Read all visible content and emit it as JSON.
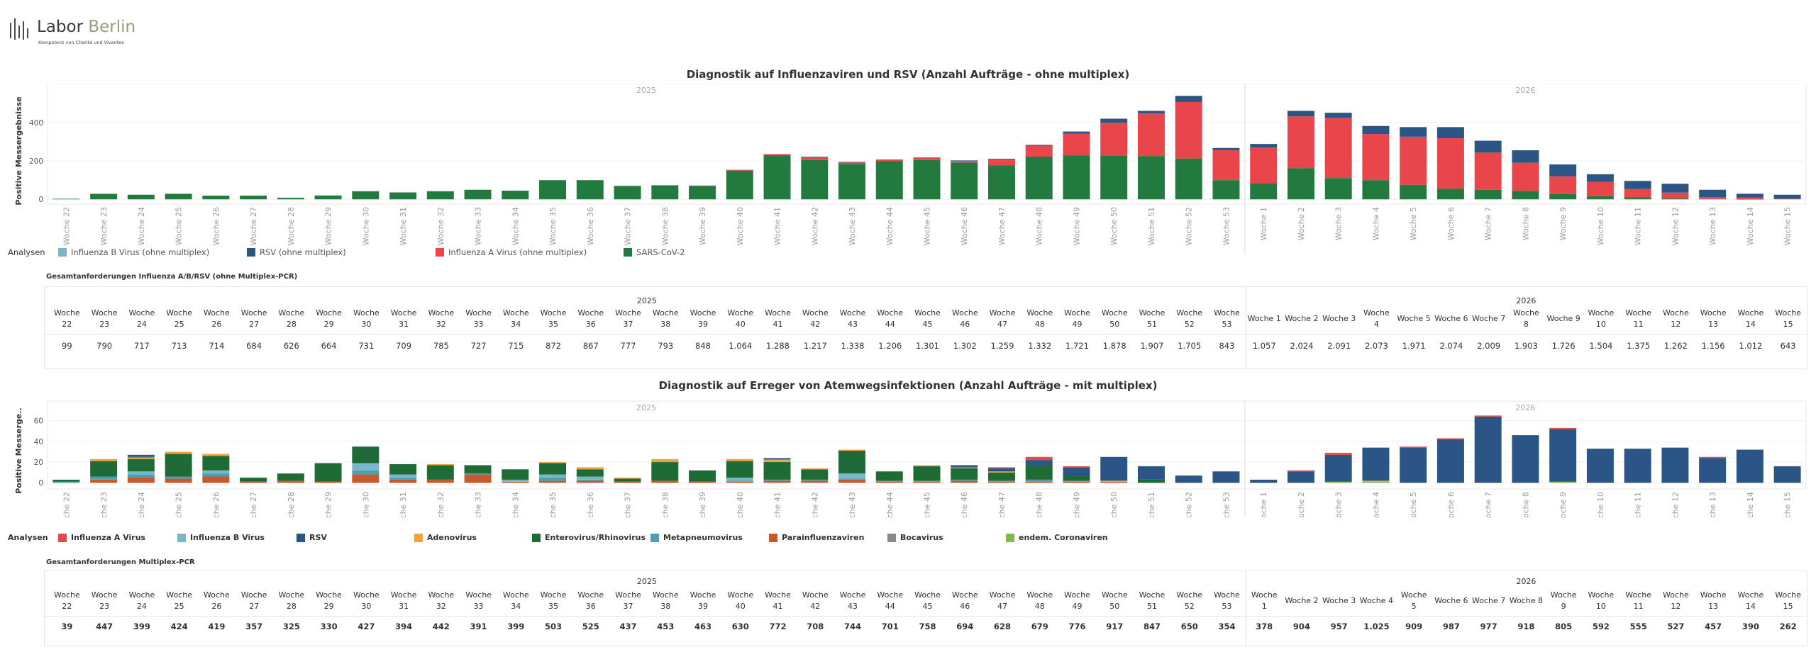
{
  "logo": {
    "name_part1": "Labor ",
    "name_part2": "Berlin",
    "tagline": "Kompetenz von Charité und Vivantes"
  },
  "weeks": [
    "22",
    "23",
    "24",
    "25",
    "26",
    "27",
    "28",
    "29",
    "30",
    "31",
    "32",
    "33",
    "34",
    "35",
    "36",
    "37",
    "38",
    "39",
    "40",
    "41",
    "42",
    "43",
    "44",
    "45",
    "46",
    "47",
    "48",
    "49",
    "50",
    "51",
    "52",
    "53",
    "1",
    "2",
    "3",
    "4",
    "5",
    "6",
    "7",
    "8",
    "9",
    "10",
    "11",
    "12",
    "13",
    "14",
    "15"
  ],
  "week_prefix": "Woche",
  "years": [
    "2025",
    "2026"
  ],
  "legend_title": "Analysen",
  "colors": {
    "influenza_a": "#e8464a",
    "influenza_b": "#79b6c8",
    "rsv": "#2b5584",
    "sars_cov2": "#237a3f",
    "adenovirus": "#f0a240",
    "entero_rhino": "#1f6b35",
    "metapneumo": "#4a9fb5",
    "parainfluenza": "#c9582b",
    "bocavirus": "#888888",
    "endem_corona": "#7dba4f"
  },
  "chart1": {
    "title": "Diagnostik auf Influenzaviren und RSV (Anzahl Aufträge - ohne multiplex)",
    "chart_data": {
      "type": "bar",
      "stacked": true,
      "ylabel": "Positive Messergebnisse",
      "ylim": [
        -25,
        530
      ],
      "yticks": [
        0,
        200,
        400
      ],
      "categories": [
        "Woche 22",
        "Woche 23",
        "Woche 24",
        "Woche 25",
        "Woche 26",
        "Woche 27",
        "Woche 28",
        "Woche 29",
        "Woche 30",
        "Woche 31",
        "Woche 32",
        "Woche 33",
        "Woche 34",
        "Woche 35",
        "Woche 36",
        "Woche 37",
        "Woche 38",
        "Woche 39",
        "Woche 40",
        "Woche 41",
        "Woche 42",
        "Woche 43",
        "Woche 44",
        "Woche 45",
        "Woche 46",
        "Woche 47",
        "Woche 48",
        "Woche 49",
        "Woche 50",
        "Woche 51",
        "Woche 52",
        "Woche 53",
        "Woche 1",
        "Woche 2",
        "Woche 3",
        "Woche 4",
        "Woche 5",
        "Woche 6",
        "Woche 7",
        "Woche 8",
        "Woche 9",
        "Woche 10",
        "Woche 11",
        "Woche 12",
        "Woche 13",
        "Woche 14",
        "Woche 15"
      ],
      "series": [
        {
          "name": "SARS-CoV-2",
          "color": "#237a3f",
          "values": [
            3,
            28,
            24,
            29,
            19,
            19,
            8,
            20,
            42,
            36,
            42,
            50,
            45,
            100,
            100,
            70,
            72,
            70,
            150,
            230,
            205,
            185,
            200,
            205,
            192,
            178,
            223,
            230,
            228,
            226,
            213,
            100,
            85,
            163,
            111,
            100,
            76,
            56,
            50,
            44,
            28,
            16,
            10,
            5,
            2,
            1,
            0
          ]
        },
        {
          "name": "Influenza A Virus (ohne multiplex)",
          "color": "#e8464a",
          "values": [
            0,
            1,
            0,
            0,
            0,
            0,
            0,
            0,
            0,
            0,
            0,
            0,
            0,
            0,
            0,
            0,
            2,
            2,
            4,
            6,
            14,
            7,
            8,
            14,
            8,
            33,
            56,
            113,
            172,
            222,
            295,
            158,
            185,
            270,
            314,
            241,
            251,
            263,
            194,
            147,
            92,
            75,
            44,
            30,
            10,
            8,
            3
          ]
        },
        {
          "name": "RSV (ohne multiplex)",
          "color": "#2b5584",
          "values": [
            0,
            0,
            0,
            0,
            0,
            0,
            0,
            0,
            0,
            0,
            0,
            0,
            0,
            0,
            0,
            0,
            0,
            0,
            0,
            0,
            3,
            3,
            0,
            0,
            3,
            1,
            5,
            11,
            21,
            14,
            32,
            10,
            19,
            29,
            27,
            42,
            50,
            58,
            62,
            65,
            62,
            40,
            42,
            46,
            38,
            20,
            21
          ]
        },
        {
          "name": "Influenza B Virus (ohne multiplex)",
          "color": "#79b6c8",
          "values": [
            0,
            0,
            0,
            0,
            0,
            0,
            0,
            0,
            0,
            0,
            0,
            0,
            0,
            0,
            0,
            0,
            0,
            0,
            0,
            0,
            0,
            0,
            0,
            0,
            0,
            0,
            0,
            0,
            0,
            0,
            0,
            0,
            0,
            0,
            0,
            0,
            0,
            0,
            0,
            0,
            0,
            0,
            0,
            0,
            0,
            0,
            0
          ]
        }
      ],
      "legend": [
        "Influenza B Virus (ohne multiplex)",
        "RSV (ohne multiplex)",
        "Influenza A Virus (ohne multiplex)",
        "SARS-CoV-2"
      ]
    }
  },
  "table1": {
    "title": "Gesamtanforderungen Influenza A/B/RSV (ohne Multiplex-PCR)",
    "values": [
      "99",
      "790",
      "717",
      "713",
      "714",
      "684",
      "626",
      "664",
      "731",
      "709",
      "785",
      "727",
      "715",
      "872",
      "867",
      "777",
      "793",
      "848",
      "1.064",
      "1.288",
      "1.217",
      "1.338",
      "1.206",
      "1.301",
      "1.302",
      "1.259",
      "1.332",
      "1.721",
      "1.878",
      "1.907",
      "1.705",
      "843",
      "1.057",
      "2.024",
      "2.091",
      "2.073",
      "1.971",
      "2.074",
      "2.009",
      "1.903",
      "1.726",
      "1.504",
      "1.375",
      "1.262",
      "1.156",
      "1.012",
      "643"
    ]
  },
  "chart2": {
    "title": "Diagnostik auf Erreger von Atemwegsinfektionen (Anzahl Aufträge - mit multiplex)",
    "chart_data": {
      "type": "bar",
      "stacked": true,
      "ylabel": "Positive Messerge..",
      "ylim": [
        -6,
        68
      ],
      "yticks": [
        0,
        20,
        40,
        60
      ],
      "categories": [
        "Woche 22",
        "Woche 23",
        "Woche 24",
        "Woche 25",
        "Woche 26",
        "Woche 27",
        "Woche 28",
        "Woche 29",
        "Woche 30",
        "Woche 31",
        "Woche 32",
        "Woche 33",
        "Woche 34",
        "Woche 35",
        "Woche 36",
        "Woche 37",
        "Woche 38",
        "Woche 39",
        "Woche 40",
        "Woche 41",
        "Woche 42",
        "Woche 43",
        "Woche 44",
        "Woche 45",
        "Woche 46",
        "Woche 47",
        "Woche 48",
        "Woche 49",
        "Woche 50",
        "Woche 51",
        "Woche 52",
        "Woche 53",
        "Woche 1",
        "Woche 2",
        "Woche 3",
        "Woche 4",
        "Woche 5",
        "Woche 6",
        "Woche 7",
        "Woche 8",
        "Woche 9",
        "Woche 10",
        "Woche 11",
        "Woche 12",
        "Woche 13",
        "Woche 14",
        "Woche 15"
      ],
      "series": [
        {
          "name": "Parainfluenzaviren",
          "color": "#c9582b",
          "values": [
            0,
            3,
            5,
            4,
            6,
            1,
            2,
            1,
            8,
            3,
            3,
            8,
            1,
            2,
            2,
            1,
            2,
            1,
            1,
            2,
            2,
            3,
            1,
            1,
            2,
            1,
            1,
            1,
            1,
            0,
            0,
            0,
            0,
            0,
            0,
            0,
            0,
            0,
            0,
            0,
            0,
            0,
            0,
            0,
            0,
            0,
            0
          ]
        },
        {
          "name": "Metapneumovirus",
          "color": "#4a9fb5",
          "values": [
            1,
            3,
            3,
            2,
            3,
            0,
            0,
            0,
            4,
            2,
            0,
            1,
            0,
            3,
            1,
            0,
            0,
            0,
            1,
            1,
            1,
            1,
            1,
            1,
            1,
            1,
            2,
            1,
            0,
            0,
            0,
            0,
            0,
            0,
            0,
            0,
            0,
            0,
            0,
            0,
            0,
            0,
            0,
            0,
            0,
            0,
            0
          ]
        },
        {
          "name": "Influenza B Virus",
          "color": "#79b6c8",
          "values": [
            0,
            0,
            3,
            0,
            3,
            0,
            0,
            0,
            7,
            3,
            0,
            0,
            2,
            3,
            3,
            0,
            0,
            0,
            3,
            0,
            0,
            5,
            0,
            0,
            0,
            0,
            0,
            0,
            0,
            0,
            0,
            0,
            0,
            0,
            0,
            0,
            0,
            0,
            0,
            0,
            0,
            0,
            0,
            0,
            0,
            0,
            0
          ]
        },
        {
          "name": "Enterovirus/Rhinovirus",
          "color": "#1f6b35",
          "values": [
            2,
            15,
            12,
            22,
            14,
            4,
            7,
            18,
            16,
            10,
            14,
            8,
            10,
            11,
            7,
            3,
            18,
            11,
            16,
            17,
            10,
            22,
            9,
            14,
            11,
            8,
            14,
            5,
            0,
            3,
            0,
            0,
            0,
            0,
            0,
            0,
            0,
            0,
            0,
            0,
            0,
            0,
            0,
            0,
            0,
            0,
            0
          ]
        },
        {
          "name": "endem. Coronaviren",
          "color": "#7dba4f",
          "values": [
            0,
            0,
            0,
            0,
            0,
            0,
            0,
            0,
            0,
            0,
            0,
            0,
            0,
            0,
            0,
            0,
            0,
            0,
            0,
            0,
            0,
            0,
            0,
            0,
            0,
            0,
            0,
            0,
            0,
            0,
            0,
            0,
            0,
            0,
            1,
            1,
            0,
            0,
            0,
            0,
            1,
            0,
            0,
            0,
            0,
            0,
            0
          ]
        },
        {
          "name": "Adenovirus",
          "color": "#f0a240",
          "values": [
            0,
            2,
            1,
            2,
            2,
            0,
            0,
            0,
            0,
            0,
            1,
            0,
            0,
            1,
            2,
            1,
            3,
            0,
            2,
            2,
            1,
            1,
            0,
            1,
            0,
            1,
            0,
            0,
            1,
            0,
            0,
            0,
            0,
            0,
            0,
            1,
            0,
            0,
            0,
            0,
            0,
            0,
            0,
            0,
            0,
            0,
            0
          ]
        },
        {
          "name": "Bocavirus",
          "color": "#888888",
          "values": [
            0,
            0,
            1,
            0,
            0,
            0,
            0,
            0,
            0,
            0,
            0,
            0,
            0,
            0,
            0,
            0,
            0,
            0,
            0,
            1,
            0,
            0,
            0,
            0,
            1,
            0,
            0,
            0,
            0,
            0,
            0,
            0,
            0,
            0,
            0,
            0,
            0,
            0,
            0,
            0,
            0,
            0,
            0,
            0,
            0,
            0,
            0
          ]
        },
        {
          "name": "RSV",
          "color": "#2b5584",
          "values": [
            0,
            0,
            2,
            0,
            0,
            0,
            0,
            0,
            0,
            0,
            0,
            0,
            0,
            0,
            0,
            0,
            0,
            0,
            0,
            1,
            0,
            0,
            0,
            0,
            2,
            3,
            5,
            8,
            23,
            13,
            7,
            11,
            3,
            11,
            26,
            32,
            34,
            42,
            64,
            46,
            51,
            33,
            33,
            34,
            24,
            32,
            16
          ]
        },
        {
          "name": "Influenza A Virus",
          "color": "#e8464a",
          "values": [
            0,
            0,
            0,
            0,
            0,
            0,
            0,
            0,
            0,
            0,
            0,
            0,
            0,
            0,
            0,
            0,
            0,
            0,
            0,
            0,
            0,
            0,
            0,
            0,
            0,
            1,
            3,
            1,
            0,
            0,
            0,
            0,
            0,
            1,
            2,
            0,
            1,
            1,
            1,
            0,
            1,
            0,
            0,
            0,
            1,
            0,
            0
          ]
        }
      ],
      "legend": [
        "Influenza A Virus",
        "Influenza B Virus",
        "RSV",
        "Adenovirus",
        "Enterovirus/Rhinovirus",
        "Metapneumovirus",
        "Parainfluenzaviren",
        "Bocavirus",
        "endem. Coronaviren"
      ]
    }
  },
  "table2": {
    "title": "Gesamtanforderungen Multiplex-PCR",
    "values": [
      "39",
      "447",
      "399",
      "424",
      "419",
      "357",
      "325",
      "330",
      "427",
      "394",
      "442",
      "391",
      "399",
      "503",
      "525",
      "437",
      "453",
      "463",
      "630",
      "772",
      "708",
      "744",
      "701",
      "758",
      "694",
      "628",
      "679",
      "776",
      "917",
      "847",
      "650",
      "354",
      "378",
      "904",
      "957",
      "1.025",
      "909",
      "987",
      "977",
      "918",
      "805",
      "592",
      "555",
      "527",
      "457",
      "390",
      "262"
    ]
  }
}
